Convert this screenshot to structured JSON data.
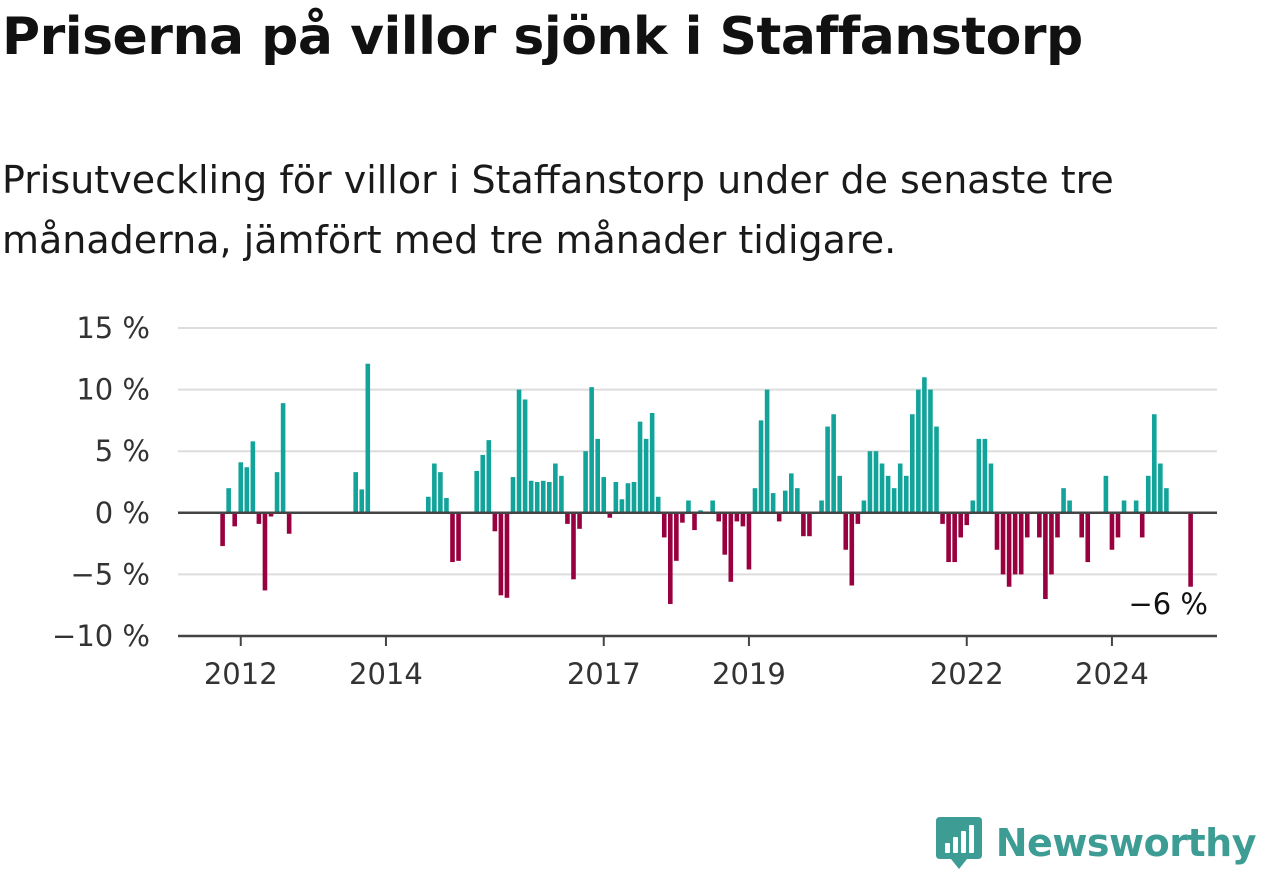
{
  "title": "Priserna på villor sjönk i Staffanstorp",
  "subtitle": "Prisutveckling för villor i Staffanstorp under de senaste tre månaderna, jämfört med tre månader tidigare.",
  "brand": "Newsworthy",
  "colors": {
    "positive": "#12a39a",
    "negative": "#99003f",
    "grid": "#dddddd",
    "axis": "#444444",
    "brand": "#3d9c94"
  },
  "chart_data": {
    "type": "bar",
    "x_start": "2011-10",
    "x_interval": "month",
    "x_end": "2025-02",
    "ylim": [
      -10,
      15
    ],
    "yticks": [
      -10,
      -5,
      0,
      5,
      10,
      15
    ],
    "ytick_labels": [
      "−10 %",
      "−5 %",
      "0 %",
      "5 %",
      "10 %",
      "15 %"
    ],
    "xtick_labels": [
      {
        "label": "2012",
        "date": "2012-01"
      },
      {
        "label": "2014",
        "date": "2014-01"
      },
      {
        "label": "2017",
        "date": "2017-01"
      },
      {
        "label": "2019",
        "date": "2019-01"
      },
      {
        "label": "2022",
        "date": "2022-01"
      },
      {
        "label": "2024",
        "date": "2024-01"
      }
    ],
    "grid": true,
    "end_label": "−6 %",
    "values": [
      -2.7,
      2.0,
      -1.1,
      4.1,
      3.7,
      5.8,
      -0.9,
      -6.3,
      -0.3,
      3.3,
      8.9,
      -1.7,
      0,
      0,
      0,
      0,
      0,
      0,
      0,
      0,
      0,
      0,
      3.3,
      1.9,
      12.1,
      0,
      0,
      0,
      0,
      0,
      0,
      0,
      0,
      0,
      1.3,
      4.0,
      3.3,
      1.2,
      -4.0,
      -3.9,
      0,
      0,
      3.4,
      4.7,
      5.9,
      -1.5,
      -6.7,
      -6.9,
      2.9,
      10.0,
      9.2,
      2.6,
      2.5,
      2.6,
      2.5,
      4.0,
      3.0,
      -0.9,
      -5.4,
      -1.3,
      5.0,
      10.2,
      6.0,
      2.9,
      -0.4,
      2.5,
      1.1,
      2.4,
      2.5,
      7.4,
      6.0,
      8.1,
      1.3,
      -2.0,
      -7.4,
      -3.9,
      -0.8,
      1.0,
      -1.4,
      0.2,
      0,
      1.0,
      -0.7,
      -3.4,
      -5.6,
      -0.7,
      -1.1,
      -4.6,
      2.0,
      7.5,
      10.0,
      1.6,
      -0.7,
      1.8,
      3.2,
      2.0,
      -1.9,
      -1.9,
      0,
      1.0,
      7.0,
      8.0,
      3.0,
      -3.0,
      -5.9,
      -0.9,
      1.0,
      5.0,
      5.0,
      4.0,
      3.0,
      2.0,
      4.0,
      3.0,
      8.0,
      10.0,
      11.0,
      10.0,
      7.0,
      -0.9,
      -4.0,
      -4.0,
      -2.0,
      -1.0,
      1.0,
      6.0,
      6.0,
      4.0,
      -3.0,
      -5.0,
      -6.0,
      -5.0,
      -5.0,
      -2.0,
      0,
      -2.0,
      -7.0,
      -5.0,
      -2.0,
      2.0,
      1.0,
      0,
      -2.0,
      -4.0,
      0,
      0,
      3.0,
      -3.0,
      -2.0,
      1.0,
      0,
      1.0,
      -2.0,
      3.0,
      8.0,
      4.0,
      2.0,
      0,
      0,
      0,
      -6.0
    ]
  }
}
